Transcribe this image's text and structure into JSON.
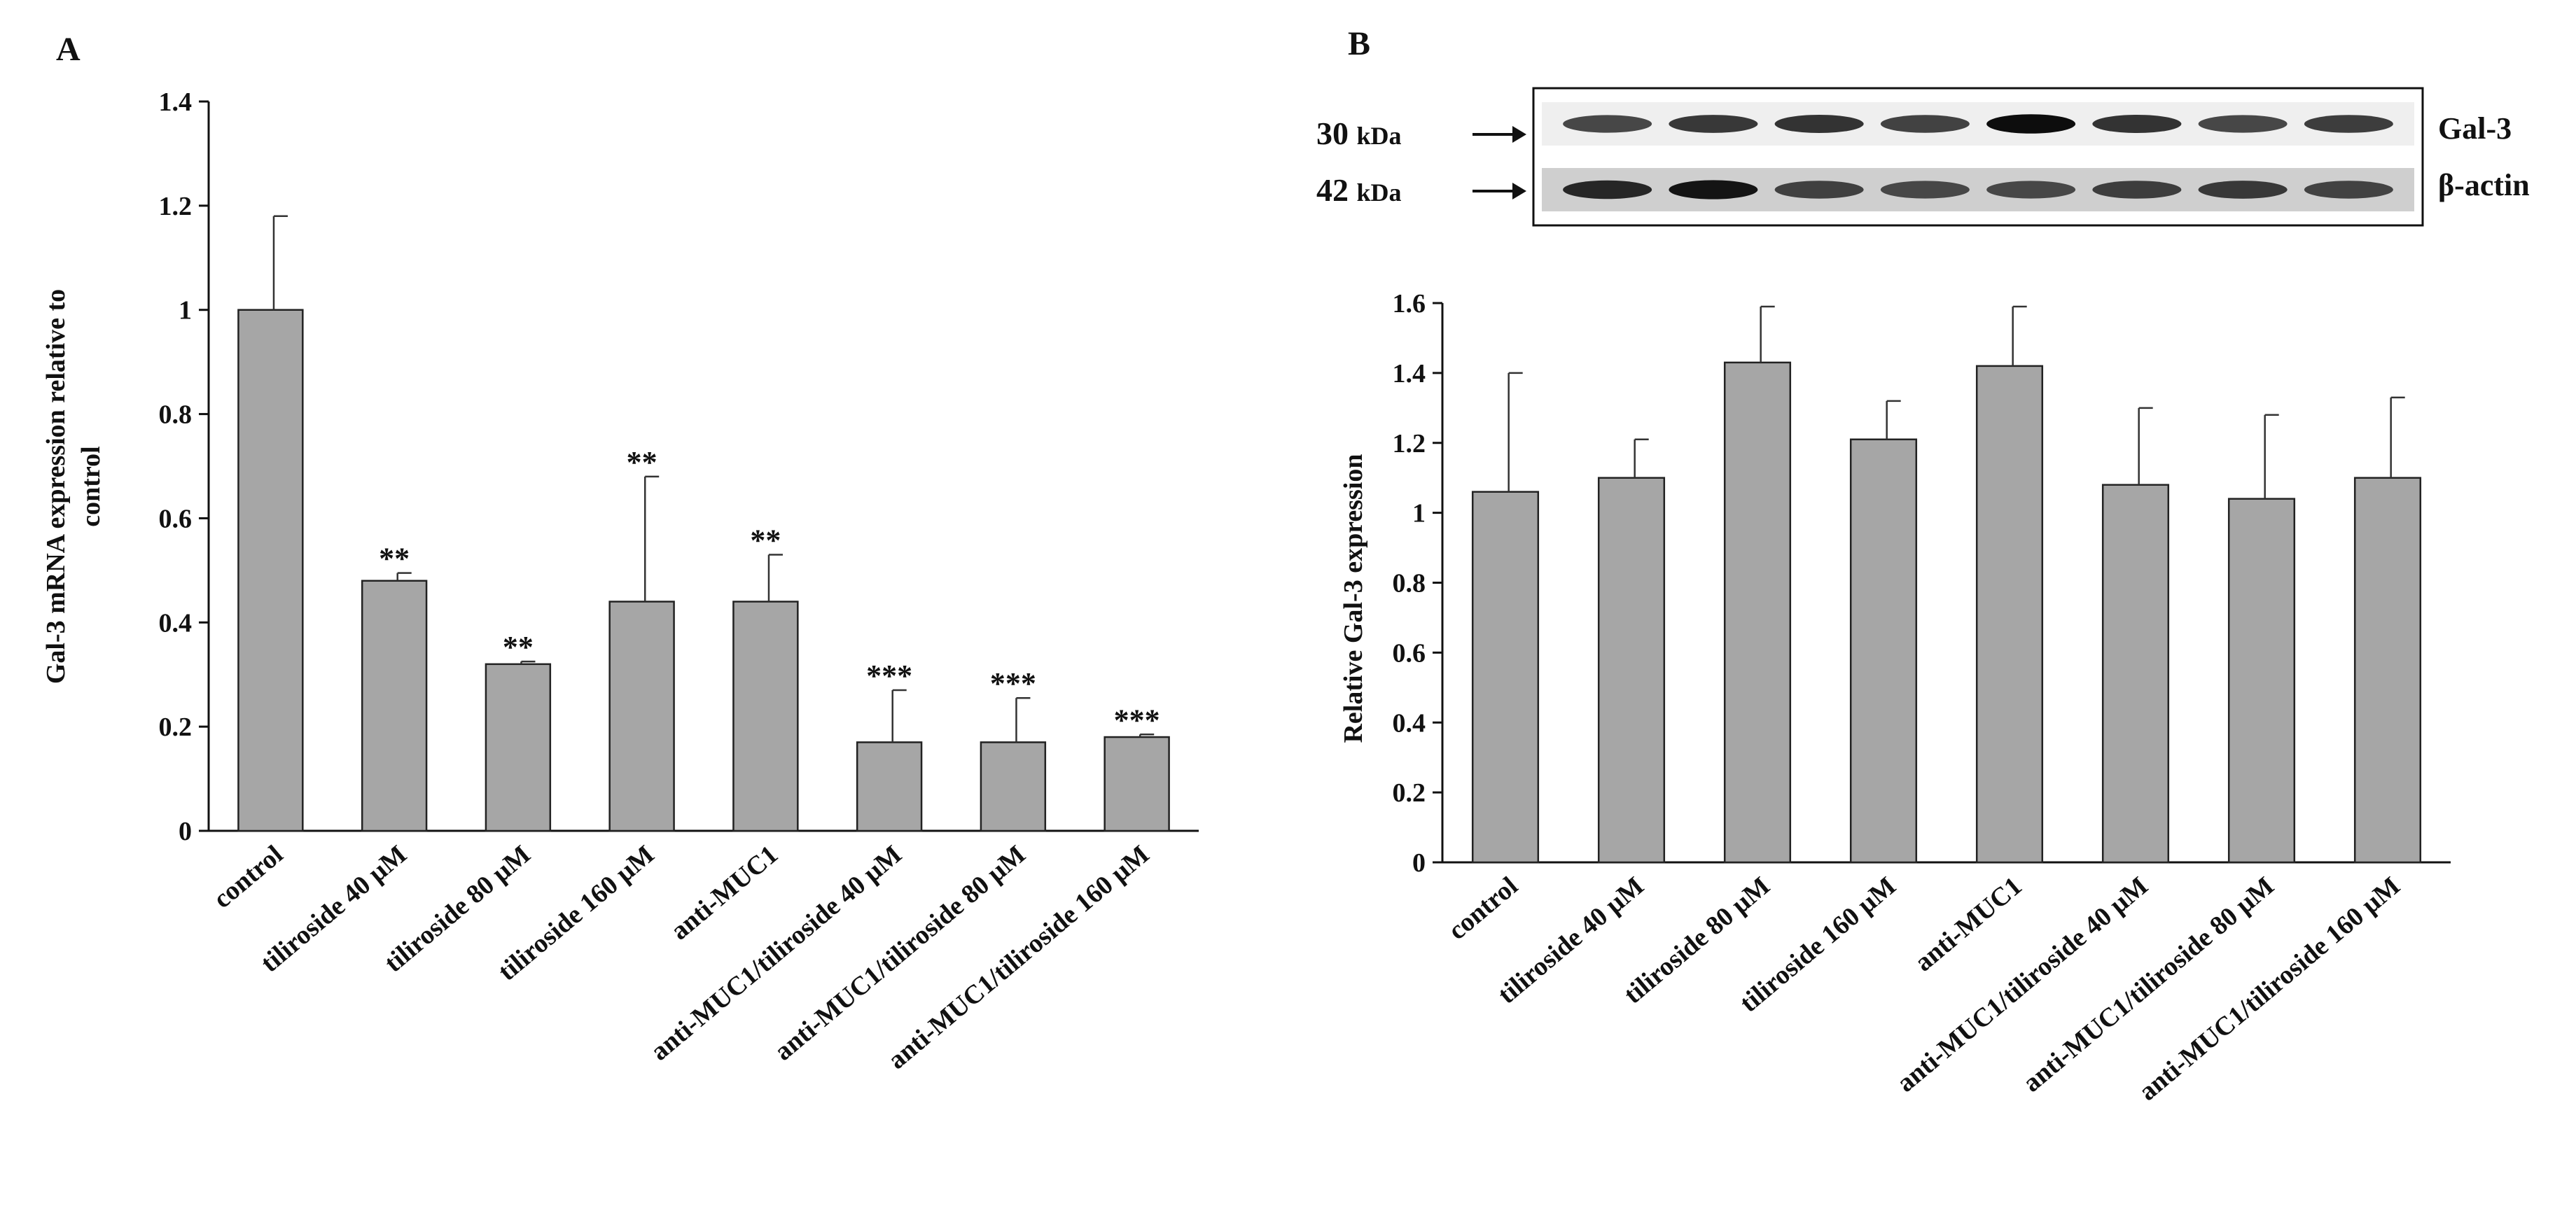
{
  "chart_data": [
    {
      "type": "bar",
      "panel_label": "A",
      "ylabel_line1": "Gal-3   mRNA  expression relative to",
      "ylabel_line2": "control",
      "xlabel": "",
      "ylim": [
        0,
        1.4
      ],
      "yticks": [
        "0",
        "0.2",
        "0.4",
        "0.6",
        "0.8",
        "1",
        "1.2",
        "1.4"
      ],
      "categories": [
        "control",
        "tiliroside 40 µM",
        "tiliroside 80 µM",
        "tiliroside 160 µM",
        "anti-MUC1",
        "anti-MUC1/tiliroside  40 µM",
        "anti-MUC1/tiliroside  80 µM",
        "anti-MUC1/tiliroside  160 µM"
      ],
      "values": [
        1.0,
        0.48,
        0.32,
        0.44,
        0.44,
        0.17,
        0.17,
        0.18
      ],
      "errors": [
        0.18,
        0.015,
        0.005,
        0.24,
        0.09,
        0.1,
        0.085,
        0.005
      ],
      "annotations": [
        "",
        "**",
        "**",
        "**",
        "**",
        "***",
        "***",
        "***"
      ],
      "bar_color": "#a6a6a6"
    },
    {
      "type": "bar",
      "panel_label": "B",
      "ylabel": "Relative  Gal-3  expression",
      "xlabel": "",
      "ylim": [
        0,
        1.6
      ],
      "yticks": [
        "0",
        "0.2",
        "0.4",
        "0.6",
        "0.8",
        "1",
        "1.2",
        "1.4",
        "1.6"
      ],
      "categories": [
        "control",
        "tiliroside 40 µM",
        "tiliroside 80 µM",
        "tiliroside 160 µM",
        "anti-MUC1",
        "anti-MUC1/tiliroside  40 µM",
        "anti-MUC1/tiliroside  80 µM",
        "anti-MUC1/tiliroside  160 µM"
      ],
      "values": [
        1.06,
        1.1,
        1.43,
        1.21,
        1.42,
        1.08,
        1.04,
        1.1
      ],
      "errors": [
        0.34,
        0.11,
        0.16,
        0.11,
        0.17,
        0.22,
        0.24,
        0.23
      ],
      "bar_color": "#a6a6a6"
    }
  ],
  "blot": {
    "bands": [
      {
        "size_value": "30",
        "size_unit": "kDa",
        "protein": "Gal-3",
        "intensity": [
          0.72,
          0.78,
          0.8,
          0.74,
          0.95,
          0.8,
          0.72,
          0.76
        ]
      },
      {
        "size_value": "42",
        "size_unit": "kDa",
        "protein": "β-actin",
        "intensity": [
          0.85,
          0.92,
          0.75,
          0.72,
          0.72,
          0.76,
          0.78,
          0.74
        ]
      }
    ]
  }
}
